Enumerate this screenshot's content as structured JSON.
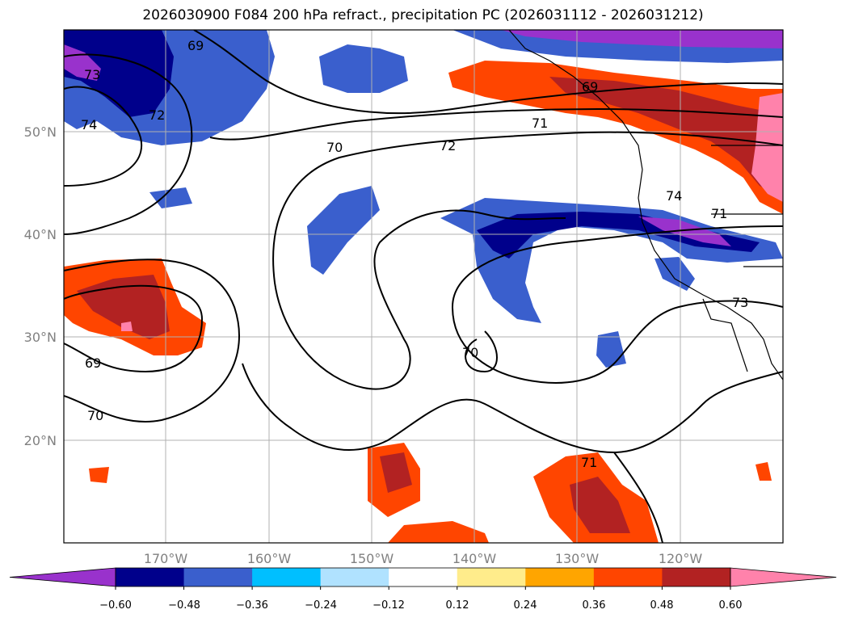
{
  "title": "2026030900 F084 200 hPa refract., precipitation PC (2026031112 - 2026031212)",
  "map": {
    "lon_labels": [
      "170°W",
      "160°W",
      "150°W",
      "140°W",
      "130°W",
      "120°W"
    ],
    "lat_labels": [
      "50°N",
      "40°N",
      "30°N",
      "20°N"
    ],
    "contour_labels": [
      "69",
      "70",
      "71",
      "72",
      "73",
      "74",
      "69",
      "70",
      "71",
      "72",
      "73",
      "74",
      "70",
      "71",
      "69"
    ]
  },
  "colorbar": {
    "ticks": [
      "−0.60",
      "−0.48",
      "−0.36",
      "−0.24",
      "−0.12",
      "0.12",
      "0.24",
      "0.36",
      "0.48",
      "0.60"
    ],
    "colors": [
      "#9932CC",
      "#00008B",
      "#3A5FCD",
      "#00BFFF",
      "#B0E2FF",
      "#FFFFFF",
      "#FFEC8B",
      "#FFA500",
      "#FF4500",
      "#B22222",
      "#FF82AB"
    ],
    "extend": "both"
  }
}
